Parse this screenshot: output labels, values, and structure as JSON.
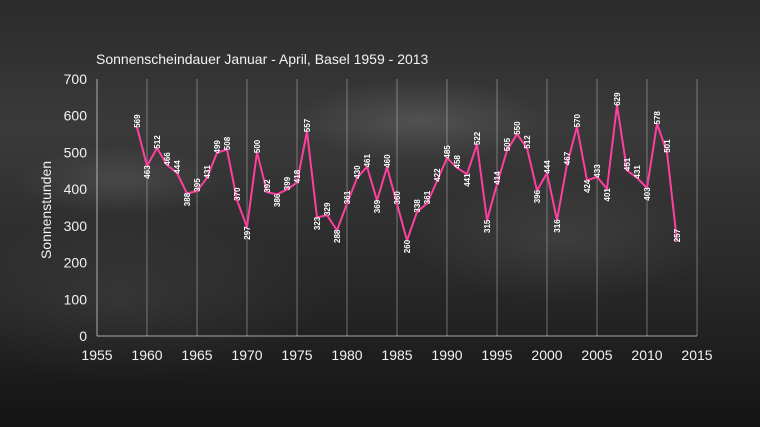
{
  "chart_data": {
    "type": "line",
    "title": "Sonnenscheindauer Januar - April, Basel 1959 - 2013",
    "xlabel": "",
    "ylabel": "Sonnenstunden",
    "xlim": [
      1955,
      2015
    ],
    "ylim": [
      0,
      700
    ],
    "xticks": [
      1955,
      1960,
      1965,
      1970,
      1975,
      1980,
      1985,
      1990,
      1995,
      2000,
      2005,
      2010,
      2015
    ],
    "yticks": [
      0,
      100,
      200,
      300,
      400,
      500,
      600,
      700
    ],
    "grid": true,
    "line_color": "#ff3fa0",
    "x": [
      1959,
      1960,
      1961,
      1962,
      1963,
      1964,
      1965,
      1966,
      1967,
      1968,
      1969,
      1970,
      1971,
      1972,
      1973,
      1974,
      1975,
      1976,
      1977,
      1978,
      1979,
      1980,
      1981,
      1982,
      1983,
      1984,
      1985,
      1986,
      1987,
      1988,
      1989,
      1990,
      1991,
      1992,
      1993,
      1994,
      1995,
      1996,
      1997,
      1998,
      1999,
      2000,
      2001,
      2002,
      2003,
      2004,
      2005,
      2006,
      2007,
      2008,
      2009,
      2010,
      2011,
      2012,
      2013
    ],
    "values": [
      569,
      463,
      512,
      466,
      444,
      388,
      395,
      431,
      499,
      508,
      370,
      297,
      500,
      392,
      386,
      399,
      418,
      557,
      323,
      329,
      288,
      361,
      430,
      461,
      369,
      460,
      360,
      260,
      338,
      361,
      422,
      485,
      458,
      441,
      522,
      315,
      414,
      505,
      550,
      512,
      396,
      444,
      316,
      467,
      570,
      424,
      433,
      401,
      629,
      451,
      431,
      403,
      578,
      501,
      257
    ]
  }
}
